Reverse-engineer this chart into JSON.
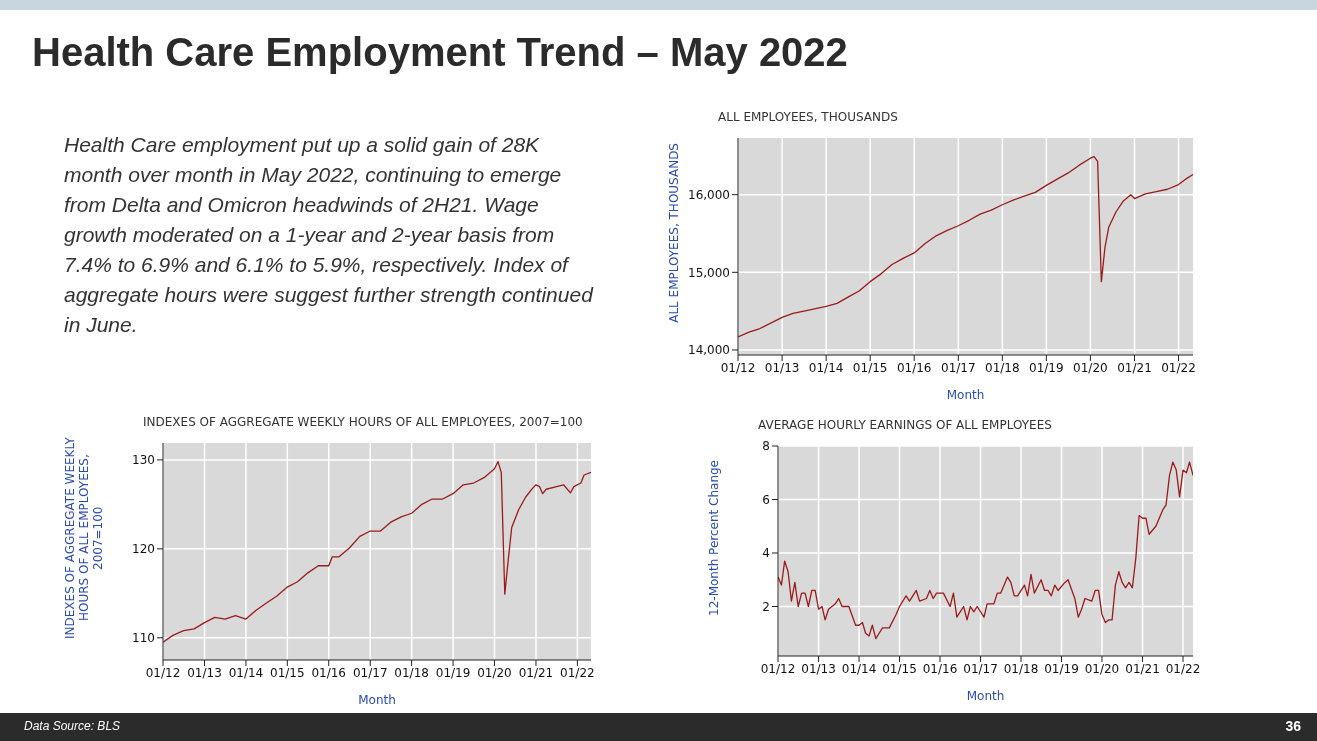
{
  "chart_data": [
    {
      "type": "other",
      "title": "Health Care Employment Trend – May 2022",
      "annotations": [
        "Health Care employment put up a solid gain of 28K month over month in May 2022, continuing to emerge from Delta and Omicron headwinds of 2H21.  Wage growth moderated on a 1-year and 2-year basis from 7.4% to 6.9% and 6.1% to 5.9%, respectively.  Index of aggregate hours were suggest further strength continued in June.",
        "Data Source: BLS",
        "36"
      ]
    },
    {
      "type": "line",
      "title": "ALL EMPLOYEES, THOUSANDS",
      "xlabel": "Month",
      "ylabel": "ALL EMPLOYEES,  THOUSANDS",
      "color": "#9b1b1b",
      "marker": "none",
      "grid": true,
      "x": [
        "2012-01",
        "2012-04",
        "2012-07",
        "2013-01",
        "2013-04",
        "2013-07",
        "2014-01",
        "2014-04",
        "2014-07",
        "2014-10",
        "2015-01",
        "2015-04",
        "2015-07",
        "2015-10",
        "2016-01",
        "2016-04",
        "2016-07",
        "2016-10",
        "2017-01",
        "2017-04",
        "2017-07",
        "2017-10",
        "2018-01",
        "2018-04",
        "2018-07",
        "2018-10",
        "2019-01",
        "2019-04",
        "2019-07",
        "2019-10",
        "2020-01",
        "2020-02",
        "2020-03",
        "2020-04",
        "2020-05",
        "2020-06",
        "2020-08",
        "2020-10",
        "2020-12",
        "2021-01",
        "2021-04",
        "2021-07",
        "2021-10",
        "2022-01",
        "2022-03",
        "2022-05"
      ],
      "values": [
        14167,
        14230,
        14276,
        14420,
        14470,
        14500,
        14560,
        14600,
        14680,
        14760,
        14880,
        14980,
        15100,
        15180,
        15250,
        15370,
        15470,
        15540,
        15600,
        15670,
        15750,
        15800,
        15870,
        15930,
        15980,
        16030,
        16120,
        16200,
        16280,
        16380,
        16470,
        16490,
        16430,
        14880,
        15320,
        15580,
        15780,
        15920,
        16000,
        15950,
        16010,
        16040,
        16070,
        16130,
        16200,
        16260
      ],
      "xlim": [
        "2012-01",
        "2022-05"
      ],
      "xticks": [
        {
          "value": "2012-01",
          "label": "01/12"
        },
        {
          "value": "2013-01",
          "label": "01/13"
        },
        {
          "value": "2014-01",
          "label": "01/14"
        },
        {
          "value": "2015-01",
          "label": "01/15"
        },
        {
          "value": "2016-01",
          "label": "01/16"
        },
        {
          "value": "2017-01",
          "label": "01/17"
        },
        {
          "value": "2018-01",
          "label": "01/18"
        },
        {
          "value": "2019-01",
          "label": "01/19"
        },
        {
          "value": "2020-01",
          "label": "01/20"
        },
        {
          "value": "2021-01",
          "label": "01/21"
        },
        {
          "value": "2022-01",
          "label": "01/22"
        }
      ],
      "ylim": [
        13935,
        16730
      ],
      "yticks": [
        {
          "value": 14000,
          "label": "14,000"
        },
        {
          "value": 15000,
          "label": "15,000"
        },
        {
          "value": 16000,
          "label": "16,000"
        }
      ]
    },
    {
      "type": "line",
      "title": "INDEXES OF AGGREGATE WEEKLY HOURS OF ALL EMPLOYEES, 2007=100",
      "xlabel": "Month",
      "ylabel": "INDEXES OF AGGREGATE WEEKLY HOURS OF ALL EMPLOYEES, 2007=100",
      "color": "#9b1b1b",
      "marker": "none",
      "grid": true,
      "x": [
        "2012-01",
        "2012-04",
        "2012-07",
        "2012-10",
        "2013-01",
        "2013-04",
        "2013-07",
        "2013-10",
        "2014-01",
        "2014-04",
        "2014-07",
        "2014-10",
        "2015-01",
        "2015-04",
        "2015-07",
        "2015-10",
        "2016-01",
        "2016-02",
        "2016-04",
        "2016-07",
        "2016-10",
        "2017-01",
        "2017-04",
        "2017-07",
        "2017-10",
        "2018-01",
        "2018-04",
        "2018-07",
        "2018-10",
        "2019-01",
        "2019-04",
        "2019-07",
        "2019-10",
        "2020-01",
        "2020-02",
        "2020-03",
        "2020-04",
        "2020-05",
        "2020-06",
        "2020-08",
        "2020-10",
        "2020-12",
        "2021-01",
        "2021-02",
        "2021-03",
        "2021-04",
        "2021-07",
        "2021-09",
        "2021-11",
        "2021-12",
        "2022-02",
        "2022-03",
        "2022-05"
      ],
      "values": [
        109.5,
        110.3,
        110.8,
        111.0,
        111.7,
        112.3,
        112.1,
        112.5,
        112.1,
        113.1,
        113.9,
        114.7,
        115.7,
        116.3,
        117.3,
        118.1,
        118.1,
        119.1,
        119.1,
        120.1,
        121.4,
        122.0,
        122.0,
        123.0,
        123.6,
        124.0,
        125.0,
        125.6,
        125.6,
        126.2,
        127.2,
        127.4,
        128.0,
        129.0,
        129.8,
        128.6,
        114.9,
        118.7,
        122.4,
        124.4,
        125.8,
        126.8,
        127.2,
        127.0,
        126.2,
        126.7,
        127.0,
        127.2,
        126.3,
        127.0,
        127.4,
        128.3,
        128.6
      ],
      "xlim": [
        "2012-01",
        "2022-05"
      ],
      "xticks": [
        {
          "value": "2012-01",
          "label": "01/12"
        },
        {
          "value": "2013-01",
          "label": "01/13"
        },
        {
          "value": "2014-01",
          "label": "01/14"
        },
        {
          "value": "2015-01",
          "label": "01/15"
        },
        {
          "value": "2016-01",
          "label": "01/16"
        },
        {
          "value": "2017-01",
          "label": "01/17"
        },
        {
          "value": "2018-01",
          "label": "01/18"
        },
        {
          "value": "2019-01",
          "label": "01/19"
        },
        {
          "value": "2020-01",
          "label": "01/20"
        },
        {
          "value": "2021-01",
          "label": "01/21"
        },
        {
          "value": "2022-01",
          "label": "01/22"
        }
      ],
      "ylim": [
        107.5,
        131.9
      ],
      "yticks": [
        110,
        120,
        130
      ]
    },
    {
      "type": "line",
      "title": "AVERAGE HOURLY EARNINGS OF ALL EMPLOYEES",
      "xlabel": "Month",
      "ylabel": "12-Month Percent Change",
      "color": "#9b1b1b",
      "marker": "none",
      "grid": true,
      "x": [
        "2012-01",
        "2012-02",
        "2012-03",
        "2012-04",
        "2012-05",
        "2012-06",
        "2012-07",
        "2012-08",
        "2012-09",
        "2012-10",
        "2012-11",
        "2012-12",
        "2013-01",
        "2013-02",
        "2013-03",
        "2013-04",
        "2013-06",
        "2013-07",
        "2013-08",
        "2013-10",
        "2013-12",
        "2014-01",
        "2014-02",
        "2014-03",
        "2014-04",
        "2014-05",
        "2014-06",
        "2014-07",
        "2014-08",
        "2014-10",
        "2014-12",
        "2015-01",
        "2015-03",
        "2015-04",
        "2015-06",
        "2015-07",
        "2015-09",
        "2015-10",
        "2015-11",
        "2015-12",
        "2016-02",
        "2016-04",
        "2016-05",
        "2016-06",
        "2016-08",
        "2016-09",
        "2016-10",
        "2016-11",
        "2016-12",
        "2017-02",
        "2017-03",
        "2017-05",
        "2017-06",
        "2017-07",
        "2017-09",
        "2017-10",
        "2017-11",
        "2017-12",
        "2018-02",
        "2018-03",
        "2018-04",
        "2018-05",
        "2018-07",
        "2018-08",
        "2018-09",
        "2018-10",
        "2018-11",
        "2018-12",
        "2019-02",
        "2019-03",
        "2019-05",
        "2019-06",
        "2019-07",
        "2019-08",
        "2019-10",
        "2019-11",
        "2019-12",
        "2020-01",
        "2020-02",
        "2020-03",
        "2020-04",
        "2020-05",
        "2020-06",
        "2020-07",
        "2020-08",
        "2020-09",
        "2020-10",
        "2020-11",
        "2020-12",
        "2021-01",
        "2021-02",
        "2021-03",
        "2021-05",
        "2021-07",
        "2021-08",
        "2021-09",
        "2021-10",
        "2021-11",
        "2021-12",
        "2022-01",
        "2022-02",
        "2022-03",
        "2022-04"
      ],
      "values": [
        3.1,
        2.8,
        3.7,
        3.3,
        2.2,
        2.9,
        2.0,
        2.5,
        2.5,
        2.0,
        2.6,
        2.6,
        1.9,
        2.0,
        1.5,
        1.9,
        2.1,
        2.3,
        2.0,
        2.0,
        1.3,
        1.3,
        1.4,
        1.0,
        0.9,
        1.3,
        0.8,
        1.0,
        1.2,
        1.2,
        1.7,
        2.0,
        2.4,
        2.2,
        2.6,
        2.2,
        2.3,
        2.6,
        2.3,
        2.5,
        2.5,
        2.0,
        2.5,
        1.6,
        2.0,
        1.5,
        2.0,
        1.8,
        2.0,
        1.6,
        2.1,
        2.1,
        2.5,
        2.5,
        3.1,
        2.9,
        2.4,
        2.4,
        2.8,
        2.4,
        3.2,
        2.5,
        3.0,
        2.6,
        2.6,
        2.4,
        2.8,
        2.6,
        2.9,
        3.0,
        2.3,
        1.6,
        1.9,
        2.3,
        2.2,
        2.6,
        2.6,
        1.7,
        1.4,
        1.5,
        1.5,
        2.8,
        3.3,
        2.9,
        2.7,
        2.9,
        2.7,
        3.8,
        5.4,
        5.3,
        5.3,
        4.7,
        5.0,
        5.6,
        5.8,
        6.9,
        7.4,
        7.1,
        6.1,
        7.1,
        7.0,
        7.4,
        6.9
      ],
      "xlim": [
        "2012-01",
        "2022-04"
      ],
      "xticks": [
        {
          "value": "2012-01",
          "label": "01/12"
        },
        {
          "value": "2013-01",
          "label": "01/13"
        },
        {
          "value": "2014-01",
          "label": "01/14"
        },
        {
          "value": "2015-01",
          "label": "01/15"
        },
        {
          "value": "2016-01",
          "label": "01/16"
        },
        {
          "value": "2017-01",
          "label": "01/17"
        },
        {
          "value": "2018-01",
          "label": "01/18"
        },
        {
          "value": "2019-01",
          "label": "01/19"
        },
        {
          "value": "2020-01",
          "label": "01/20"
        },
        {
          "value": "2021-01",
          "label": "01/21"
        },
        {
          "value": "2022-01",
          "label": "01/22"
        }
      ],
      "ylim": [
        0.15,
        8
      ],
      "yticks": [
        2,
        4,
        6,
        8
      ]
    }
  ]
}
